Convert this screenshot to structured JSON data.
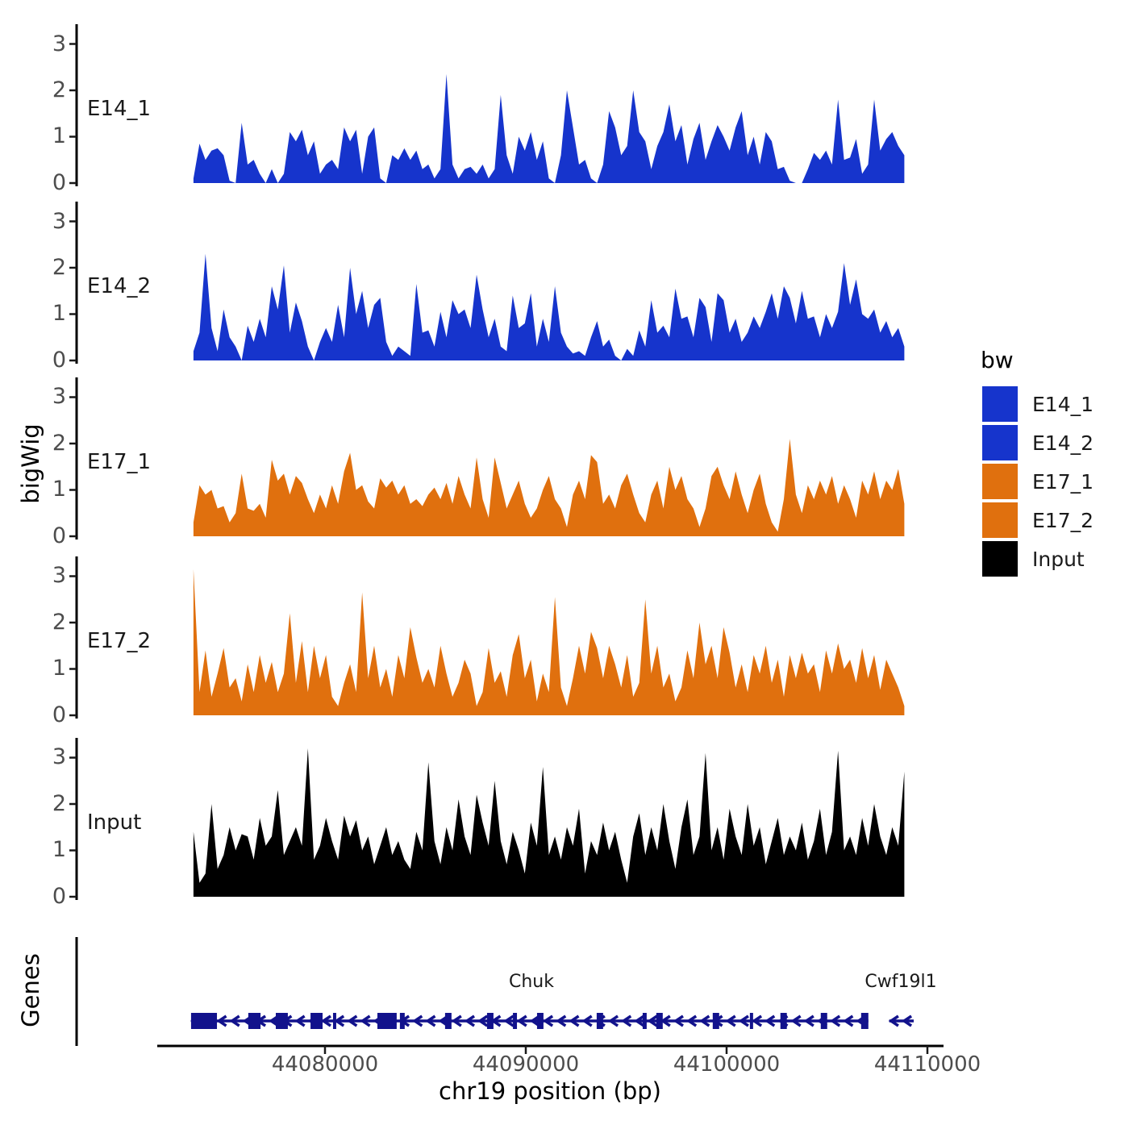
{
  "axes": {
    "y_label": "bigWig",
    "genes_panel_label": "Genes",
    "x_label": "chr19 position (bp)",
    "y_ticks": [
      "0",
      "1",
      "2",
      "3"
    ],
    "x_ticks": [
      {
        "label": "44080000",
        "bp": 44080000
      },
      {
        "label": "44090000",
        "bp": 44090000
      },
      {
        "label": "44100000",
        "bp": 44100000
      },
      {
        "label": "44110000",
        "bp": 44110000
      }
    ]
  },
  "legend": {
    "title": "bw",
    "items": [
      {
        "label": "E14_1",
        "color": "#1634CC"
      },
      {
        "label": "E14_2",
        "color": "#1634CC"
      },
      {
        "label": "E17_1",
        "color": "#E0700E"
      },
      {
        "label": "E17_2",
        "color": "#E0700E"
      },
      {
        "label": "Input",
        "color": "#000000"
      }
    ]
  },
  "tracks": [
    {
      "label": "E14_1"
    },
    {
      "label": "E14_2"
    },
    {
      "label": "E17_1"
    },
    {
      "label": "E17_2"
    },
    {
      "label": "Input"
    }
  ],
  "chart_data": {
    "type": "area",
    "title": "",
    "xlabel": "chr19 position (bp)",
    "ylabel": "bigWig",
    "xlim": [
      44071500,
      44111200
    ],
    "ylim": [
      0,
      3.4
    ],
    "x_start": 44073450,
    "x_step": 300,
    "series": [
      {
        "name": "E14_1",
        "color": "#1634CC",
        "values": [
          0.1,
          0.85,
          0.5,
          0.7,
          0.75,
          0.6,
          0.05,
          0,
          1.3,
          0.4,
          0.5,
          0.2,
          0,
          0.3,
          0,
          0.2,
          1.1,
          0.9,
          1.15,
          0.6,
          0.9,
          0.2,
          0.4,
          0.5,
          0.3,
          1.2,
          0.9,
          1.15,
          0.2,
          1.0,
          1.2,
          0.1,
          0,
          0.6,
          0.5,
          0.75,
          0.5,
          0.7,
          0.3,
          0.4,
          0.1,
          0.3,
          2.35,
          0.4,
          0.1,
          0.3,
          0.35,
          0.2,
          0.4,
          0.1,
          0.3,
          1.9,
          0.6,
          0.2,
          1.0,
          0.7,
          1.1,
          0.5,
          0.9,
          0.1,
          0,
          0.6,
          2.0,
          1.2,
          0.4,
          0.5,
          0.1,
          0,
          0.4,
          1.55,
          1.2,
          0.6,
          0.8,
          2.0,
          1.1,
          0.9,
          0.3,
          0.8,
          1.1,
          1.7,
          0.9,
          1.25,
          0.4,
          0.95,
          1.3,
          0.5,
          0.9,
          1.25,
          1.0,
          0.7,
          1.2,
          1.55,
          0.6,
          1.0,
          0.4,
          1.1,
          0.9,
          0.3,
          0.35,
          0.05,
          0,
          0,
          0.3,
          0.65,
          0.5,
          0.7,
          0.4,
          1.8,
          0.5,
          0.55,
          0.95,
          0.2,
          0.4,
          1.8,
          0.7,
          0.95,
          1.1,
          0.8,
          0.6
        ]
      },
      {
        "name": "E14_2",
        "color": "#1634CC",
        "values": [
          0.2,
          0.6,
          2.3,
          0.7,
          0.2,
          1.1,
          0.5,
          0.3,
          0,
          0.75,
          0.4,
          0.9,
          0.5,
          1.6,
          1.1,
          2.05,
          0.6,
          1.25,
          0.85,
          0.3,
          0,
          0.4,
          0.7,
          0.4,
          1.2,
          0.5,
          2.0,
          1.0,
          1.5,
          0.7,
          1.2,
          1.35,
          0.4,
          0.1,
          0.3,
          0.2,
          0.1,
          1.65,
          0.6,
          0.65,
          0.3,
          1.05,
          0.5,
          1.3,
          1.0,
          1.1,
          0.7,
          1.85,
          1.1,
          0.5,
          0.9,
          0.3,
          0.2,
          1.4,
          0.7,
          0.8,
          1.45,
          0.3,
          0.9,
          0.4,
          1.6,
          0.6,
          0.3,
          0.15,
          0.2,
          0.1,
          0.5,
          0.85,
          0.3,
          0.45,
          0.1,
          0,
          0.25,
          0.1,
          0.65,
          0.3,
          1.3,
          0.6,
          0.75,
          0.5,
          1.55,
          0.9,
          0.95,
          0.5,
          1.35,
          1.15,
          0.4,
          1.45,
          1.3,
          0.6,
          0.9,
          0.4,
          0.6,
          0.95,
          0.7,
          1.05,
          1.45,
          0.9,
          1.6,
          1.35,
          0.8,
          1.5,
          0.9,
          0.95,
          0.5,
          1.0,
          0.7,
          1.05,
          2.1,
          1.2,
          1.75,
          1.0,
          0.9,
          1.1,
          0.6,
          0.85,
          0.5,
          0.7,
          0.3
        ]
      },
      {
        "name": "E17_1",
        "color": "#E0700E",
        "values": [
          0.3,
          1.1,
          0.9,
          1.0,
          0.6,
          0.65,
          0.3,
          0.5,
          1.35,
          0.6,
          0.55,
          0.7,
          0.4,
          1.65,
          1.2,
          1.35,
          0.9,
          1.3,
          1.15,
          0.8,
          0.5,
          0.9,
          0.6,
          1.1,
          0.7,
          1.4,
          1.8,
          1.0,
          1.1,
          0.75,
          0.6,
          1.25,
          1.05,
          1.2,
          0.9,
          1.1,
          0.7,
          0.8,
          0.65,
          0.9,
          1.05,
          0.8,
          1.15,
          0.7,
          1.3,
          0.9,
          0.6,
          1.7,
          0.8,
          0.4,
          1.7,
          1.15,
          0.6,
          0.9,
          1.2,
          0.7,
          0.4,
          0.6,
          1.0,
          1.3,
          0.8,
          0.6,
          0.2,
          0.9,
          1.2,
          0.8,
          1.75,
          1.6,
          0.7,
          0.9,
          0.6,
          1.1,
          1.35,
          0.9,
          0.5,
          0.3,
          0.9,
          1.2,
          0.6,
          1.5,
          1.0,
          1.3,
          0.8,
          0.6,
          0.2,
          0.6,
          1.3,
          1.5,
          1.1,
          0.8,
          1.4,
          0.9,
          0.5,
          1.0,
          1.35,
          0.7,
          0.3,
          0.1,
          0.8,
          2.1,
          0.9,
          0.5,
          1.1,
          0.8,
          1.2,
          0.9,
          1.3,
          0.7,
          1.1,
          0.8,
          0.4,
          1.2,
          0.9,
          1.4,
          0.8,
          1.2,
          1.0,
          1.45,
          0.7
        ]
      },
      {
        "name": "E17_2",
        "color": "#E0700E",
        "values": [
          3.15,
          0.5,
          1.4,
          0.4,
          0.9,
          1.45,
          0.6,
          0.8,
          0.3,
          1.1,
          0.5,
          1.3,
          0.7,
          1.15,
          0.5,
          0.9,
          2.2,
          0.7,
          1.6,
          0.5,
          1.5,
          0.8,
          1.3,
          0.4,
          0.2,
          0.7,
          1.1,
          0.5,
          2.65,
          0.8,
          1.5,
          0.6,
          1.0,
          0.4,
          1.3,
          0.8,
          1.9,
          1.25,
          0.7,
          1.0,
          0.6,
          1.5,
          0.9,
          0.4,
          0.7,
          1.2,
          0.9,
          0.2,
          0.5,
          1.45,
          0.7,
          0.95,
          0.4,
          1.3,
          1.75,
          0.8,
          1.2,
          0.3,
          0.9,
          0.5,
          2.55,
          0.6,
          0.2,
          0.8,
          1.5,
          0.9,
          1.8,
          1.45,
          0.8,
          1.5,
          1.1,
          0.6,
          1.3,
          0.4,
          0.7,
          2.5,
          0.9,
          1.5,
          0.6,
          0.9,
          0.3,
          0.6,
          1.4,
          0.8,
          2.0,
          1.1,
          1.5,
          0.8,
          1.9,
          1.35,
          0.6,
          1.1,
          0.5,
          1.3,
          0.9,
          1.5,
          0.7,
          1.2,
          0.4,
          1.3,
          0.8,
          1.35,
          0.9,
          1.1,
          0.5,
          1.4,
          0.9,
          1.55,
          1.0,
          1.2,
          0.7,
          1.45,
          0.8,
          1.3,
          0.55,
          1.2,
          0.9,
          0.6,
          0.2
        ]
      },
      {
        "name": "Input",
        "color": "#000000",
        "values": [
          1.4,
          0.3,
          0.5,
          2.0,
          0.6,
          0.9,
          1.5,
          1.0,
          1.35,
          1.3,
          0.8,
          1.7,
          1.1,
          1.3,
          2.3,
          0.9,
          1.2,
          1.5,
          1.1,
          3.2,
          0.8,
          1.1,
          1.7,
          1.2,
          0.8,
          1.75,
          1.3,
          1.65,
          1.0,
          1.3,
          0.7,
          1.1,
          1.5,
          0.9,
          1.2,
          0.8,
          0.6,
          1.4,
          1.0,
          2.9,
          1.2,
          0.7,
          1.5,
          1.0,
          2.1,
          1.3,
          0.9,
          2.2,
          1.6,
          1.1,
          2.5,
          1.2,
          0.7,
          1.4,
          1.0,
          0.5,
          1.6,
          1.1,
          2.8,
          0.9,
          1.3,
          0.8,
          1.5,
          1.1,
          1.9,
          0.5,
          1.2,
          0.9,
          1.6,
          1.0,
          1.4,
          0.8,
          0.3,
          1.3,
          1.8,
          0.9,
          1.5,
          1.0,
          2.0,
          1.2,
          0.6,
          1.5,
          2.1,
          0.9,
          1.3,
          3.1,
          1.0,
          1.5,
          0.8,
          1.9,
          1.3,
          0.9,
          2.0,
          1.1,
          1.5,
          0.7,
          1.2,
          1.7,
          0.9,
          1.3,
          1.0,
          1.6,
          0.8,
          1.2,
          1.9,
          0.9,
          1.4,
          3.15,
          1.0,
          1.3,
          0.9,
          1.7,
          1.1,
          2.0,
          1.3,
          0.9,
          1.5,
          1.1,
          2.7
        ]
      }
    ]
  },
  "genes": {
    "color": "#12128C",
    "items": [
      {
        "name": "Chuk",
        "strand": "-",
        "start": 44073330,
        "end": 44107060,
        "label_bp": 44090300,
        "exons": [
          [
            44073330,
            44074620
          ],
          [
            44076180,
            44076790
          ],
          [
            44077550,
            44078150
          ],
          [
            44079280,
            44079880
          ],
          [
            44080400,
            44080560
          ],
          [
            44082610,
            44083570
          ],
          [
            44083730,
            44083970
          ],
          [
            44085980,
            44086300
          ],
          [
            44088070,
            44088390
          ],
          [
            44089360,
            44089560
          ],
          [
            44090560,
            44090880
          ],
          [
            44093530,
            44093850
          ],
          [
            44095820,
            44096020
          ],
          [
            44096500,
            44096820
          ],
          [
            44099310,
            44099630
          ],
          [
            44101160,
            44101320
          ],
          [
            44102680,
            44103000
          ],
          [
            44104690,
            44105010
          ],
          [
            44106700,
            44107060
          ]
        ]
      },
      {
        "name": "Cwf19l1",
        "strand": "-",
        "start": 44108100,
        "end": 44109320,
        "label_bp": 44108700,
        "exons": []
      }
    ]
  }
}
